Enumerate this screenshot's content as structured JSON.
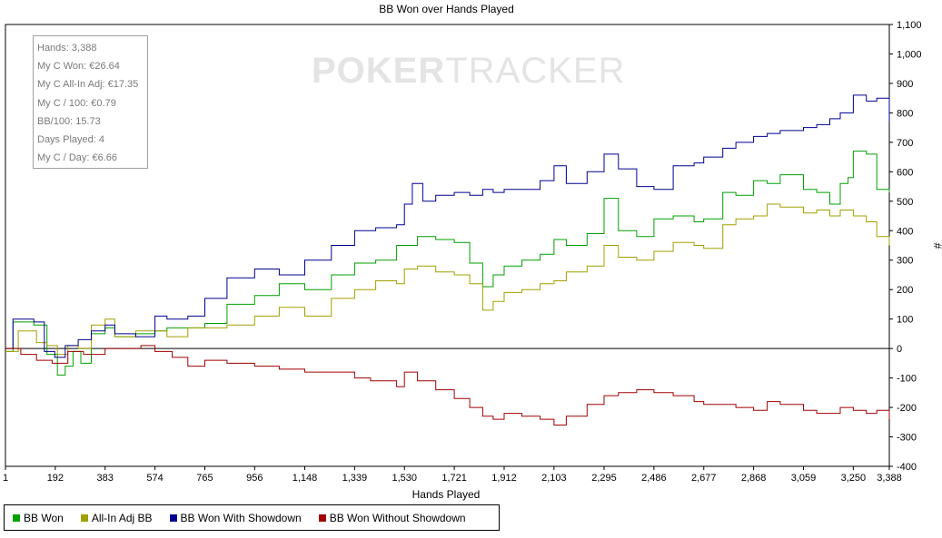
{
  "chart_data": {
    "type": "line",
    "title": "BB Won over Hands Played",
    "xlabel": "Hands Played",
    "ylabel": "#",
    "xlim": [
      1,
      3388
    ],
    "ylim": [
      -400,
      1100
    ],
    "x_ticks": [
      "1",
      "192",
      "383",
      "574",
      "765",
      "956",
      "1,148",
      "1,339",
      "1,530",
      "1,721",
      "1,912",
      "2,103",
      "2,295",
      "2,486",
      "2,677",
      "2,868",
      "3,059",
      "3,250",
      "3,388"
    ],
    "x_tick_values": [
      1,
      192,
      383,
      574,
      765,
      956,
      1148,
      1339,
      1530,
      1721,
      1912,
      2103,
      2295,
      2486,
      2677,
      2868,
      3059,
      3250,
      3388
    ],
    "y_ticks": [
      "1,100",
      "1,000",
      "900",
      "800",
      "700",
      "600",
      "500",
      "400",
      "300",
      "200",
      "100",
      "0",
      "-100",
      "-200",
      "-300",
      "-400"
    ],
    "y_tick_values": [
      1100,
      1000,
      900,
      800,
      700,
      600,
      500,
      400,
      300,
      200,
      100,
      0,
      -100,
      -200,
      -300,
      -400
    ],
    "grid": false,
    "legend_position": "bottom-left",
    "series": [
      {
        "name": "BB Won",
        "color": "#00a000",
        "x": [
          1,
          30,
          110,
          160,
          200,
          230,
          260,
          290,
          330,
          383,
          420,
          500,
          574,
          620,
          700,
          765,
          850,
          956,
          1050,
          1148,
          1250,
          1339,
          1420,
          1500,
          1530,
          1580,
          1650,
          1721,
          1780,
          1830,
          1870,
          1912,
          1980,
          2050,
          2103,
          2150,
          2230,
          2295,
          2350,
          2420,
          2486,
          2560,
          2640,
          2677,
          2750,
          2800,
          2868,
          2920,
          2970,
          3059,
          3110,
          3160,
          3200,
          3230,
          3250,
          3300,
          3340,
          3388
        ],
        "y": [
          -10,
          90,
          80,
          -20,
          -90,
          -60,
          -10,
          -50,
          50,
          70,
          40,
          50,
          60,
          70,
          70,
          85,
          150,
          180,
          220,
          200,
          250,
          290,
          300,
          350,
          350,
          380,
          370,
          360,
          290,
          210,
          250,
          280,
          300,
          320,
          370,
          350,
          390,
          510,
          400,
          380,
          440,
          450,
          430,
          440,
          530,
          520,
          570,
          560,
          590,
          540,
          530,
          490,
          560,
          580,
          670,
          660,
          540,
          530
        ]
      },
      {
        "name": "All-In Adj BB",
        "color": "#a0a000",
        "x": [
          1,
          50,
          120,
          160,
          200,
          240,
          280,
          330,
          383,
          420,
          500,
          574,
          620,
          700,
          765,
          850,
          956,
          1050,
          1148,
          1250,
          1339,
          1420,
          1500,
          1530,
          1580,
          1650,
          1721,
          1780,
          1830,
          1870,
          1912,
          1980,
          2050,
          2103,
          2150,
          2230,
          2295,
          2350,
          2420,
          2486,
          2560,
          2640,
          2677,
          2750,
          2800,
          2868,
          2920,
          2970,
          3059,
          3110,
          3160,
          3200,
          3250,
          3300,
          3340,
          3388
        ],
        "y": [
          -10,
          60,
          20,
          10,
          -20,
          10,
          0,
          80,
          100,
          40,
          60,
          60,
          40,
          70,
          70,
          80,
          110,
          140,
          110,
          170,
          200,
          230,
          220,
          270,
          280,
          260,
          250,
          220,
          130,
          160,
          190,
          200,
          220,
          230,
          260,
          280,
          350,
          310,
          300,
          330,
          360,
          350,
          340,
          420,
          440,
          450,
          490,
          480,
          460,
          470,
          450,
          470,
          450,
          430,
          380,
          350
        ]
      },
      {
        "name": "BB Won With Showdown",
        "color": "#000090",
        "x": [
          1,
          30,
          110,
          150,
          190,
          230,
          280,
          330,
          383,
          420,
          500,
          574,
          620,
          700,
          765,
          850,
          956,
          1050,
          1148,
          1250,
          1339,
          1420,
          1500,
          1530,
          1560,
          1600,
          1650,
          1721,
          1780,
          1830,
          1870,
          1912,
          1980,
          2050,
          2103,
          2150,
          2230,
          2295,
          2350,
          2420,
          2486,
          2560,
          2640,
          2677,
          2750,
          2800,
          2868,
          2920,
          2970,
          3059,
          3110,
          3160,
          3200,
          3250,
          3300,
          3340,
          3388
        ],
        "y": [
          0,
          100,
          90,
          -10,
          -30,
          10,
          30,
          60,
          80,
          50,
          40,
          110,
          100,
          110,
          170,
          240,
          270,
          250,
          300,
          350,
          400,
          410,
          420,
          490,
          560,
          500,
          520,
          530,
          520,
          540,
          530,
          540,
          540,
          570,
          620,
          560,
          600,
          660,
          610,
          550,
          540,
          620,
          630,
          650,
          680,
          700,
          720,
          730,
          740,
          750,
          760,
          780,
          800,
          860,
          840,
          850,
          770
        ]
      },
      {
        "name": "BB Won Without Showdown",
        "color": "#a00000",
        "x": [
          1,
          60,
          120,
          180,
          240,
          300,
          383,
          450,
          520,
          574,
          640,
          700,
          765,
          850,
          956,
          1050,
          1148,
          1250,
          1339,
          1400,
          1470,
          1500,
          1530,
          1580,
          1650,
          1721,
          1780,
          1830,
          1870,
          1912,
          1980,
          2050,
          2103,
          2150,
          2230,
          2295,
          2350,
          2420,
          2486,
          2560,
          2640,
          2677,
          2750,
          2800,
          2868,
          2920,
          2970,
          3059,
          3110,
          3160,
          3200,
          3250,
          3300,
          3340,
          3388
        ],
        "y": [
          0,
          -20,
          -40,
          -50,
          -10,
          -20,
          0,
          0,
          10,
          -10,
          -30,
          -60,
          -40,
          -50,
          -60,
          -70,
          -80,
          -80,
          -100,
          -110,
          -110,
          -130,
          -80,
          -110,
          -140,
          -170,
          -200,
          -230,
          -240,
          -220,
          -230,
          -240,
          -260,
          -230,
          -190,
          -160,
          -150,
          -140,
          -150,
          -160,
          -180,
          -190,
          -190,
          -200,
          -210,
          -180,
          -190,
          -210,
          -220,
          -220,
          -200,
          -210,
          -220,
          -210,
          -240
        ]
      }
    ]
  },
  "stats_box": [
    "Hands: 3,388",
    "My C Won: €26.64",
    "My C All-In Adj: €17.35",
    "My C / 100: €0.79",
    "BB/100: 15.73",
    "Days Played: 4",
    "My C / Day: €6.66"
  ],
  "watermark": {
    "bold": "POKER",
    "thin": "TRACKER"
  }
}
